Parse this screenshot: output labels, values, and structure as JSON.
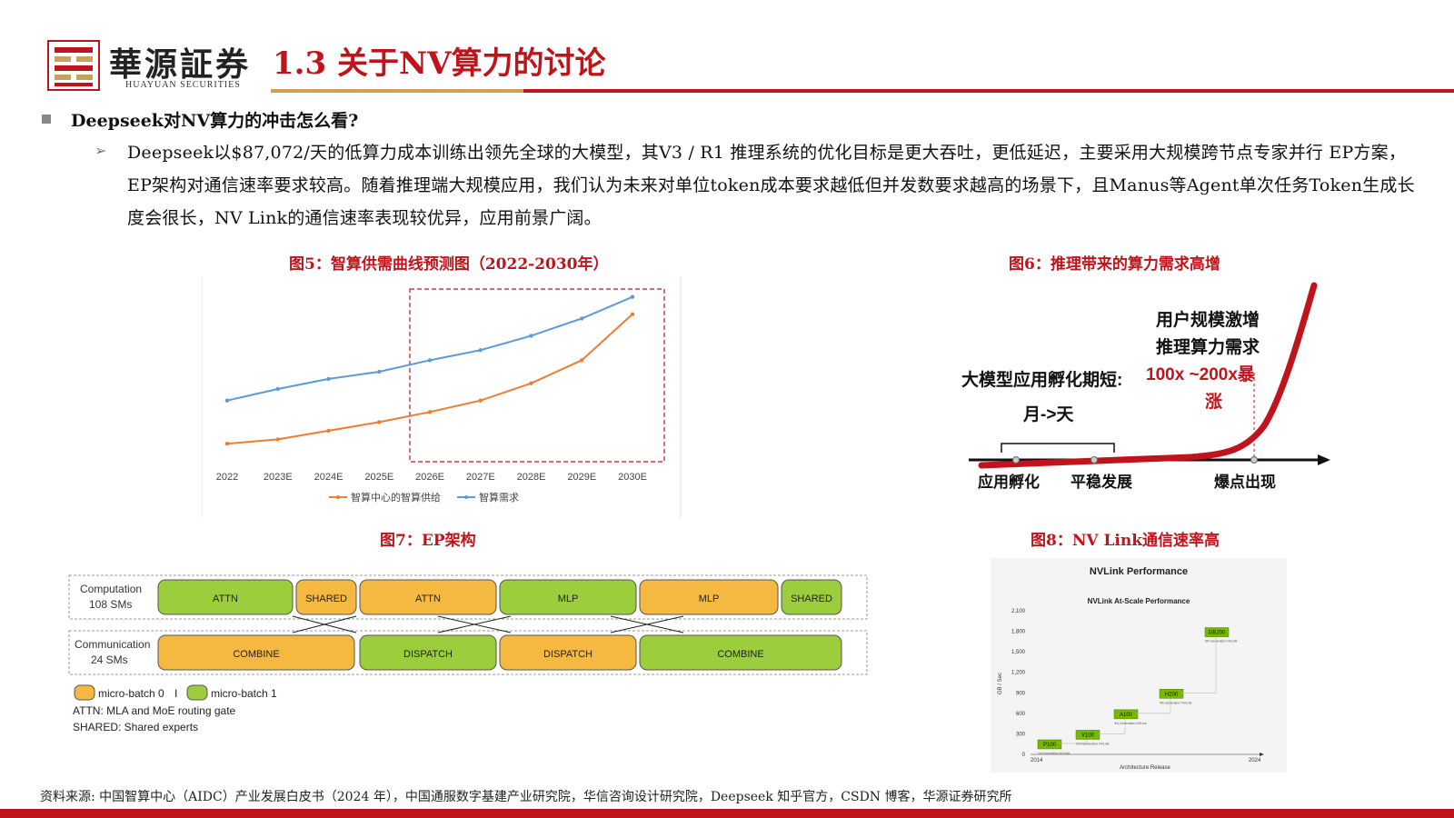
{
  "header": {
    "brand_cn": "華源証券",
    "brand_en": "HUAYUAN SECURITIES",
    "title": "1.3 关于NV算力的讨论"
  },
  "question": "Deepseek对NV算力的冲击怎么看?",
  "paragraph": "Deepseek以$87,072/天的低算力成本训练出领先全球的大模型，其V3 / R1 推理系统的优化目标是更大吞吐，更低延迟，主要采用大规模跨节点专家并行 EP方案，EP架构对通信速率要求较高。随着推理端大规模应用，我们认为未来对单位token成本要求越低但并发数要求越高的场景下，且Manus等Agent单次任务Token生成长度会很长，NV Link的通信速率表现较优异，应用前景广阔。",
  "captions": {
    "fig5": "图5：智算供需曲线预测图（2022-2030年）",
    "fig6": "图6：推理带来的算力需求高增",
    "fig7": "图7：EP架构",
    "fig8": "图8：NV Link通信速率高"
  },
  "chart_data": [
    {
      "type": "line",
      "title": "",
      "categories": [
        "2022",
        "2023E",
        "2024E",
        "2025E",
        "2026E",
        "2027E",
        "2028E",
        "2029E",
        "2030E"
      ],
      "series": [
        {
          "name": "智算中心的智算供给",
          "color": "#ed7d31",
          "values": [
            10,
            13,
            19,
            25,
            32,
            40,
            52,
            68,
            100
          ]
        },
        {
          "name": "智算需求",
          "color": "#5b9bd5",
          "values": [
            40,
            48,
            55,
            60,
            68,
            75,
            85,
            97,
            112
          ]
        }
      ],
      "ylim": [
        0,
        120
      ],
      "grid": false,
      "legend": "bottom",
      "highlight_box": "2026E-2030E"
    },
    {
      "type": "bar",
      "title": "NVLink Performance",
      "subtitle": "NVLink At-Scale Performance",
      "xlabel": "Architecture Release",
      "ylabel": "GB / Sec",
      "x_start": "2014",
      "x_end": "2024",
      "yticks": [
        "0",
        "300",
        "600",
        "900",
        "1,200",
        "1,500",
        "1,800",
        "2,100"
      ],
      "ylim": [
        0,
        2100
      ],
      "categories": [
        "P100",
        "V100",
        "A100",
        "H200",
        "GB200"
      ],
      "values": [
        160,
        300,
        600,
        900,
        1800
      ],
      "notes": [
        "1st Generation NVLink",
        "2nd Generation NVLink",
        "3rd Generation NVLink",
        "4th Generation NVLink",
        "5th Generation NVLink"
      ]
    }
  ],
  "fig6": {
    "label_top1": "用户规模激增",
    "label_top2": "推理算力需求",
    "label_mid": "大模型应用孵化期短:",
    "label_red1": "100x ~200x暴",
    "label_red2": "涨",
    "label_bracket": "月->天",
    "stage1": "应用孵化",
    "stage2": "平稳发展",
    "stage3": "爆点出现"
  },
  "fig7": {
    "row1_label1": "Computation",
    "row1_label2": "108 SMs",
    "row2_label1": "Communication",
    "row2_label2": "24 SMs",
    "row1_blocks": [
      "ATTN",
      "SHARED",
      "ATTN",
      "MLP",
      "MLP",
      "SHARED"
    ],
    "row2_blocks": [
      "COMBINE",
      "DISPATCH",
      "DISPATCH",
      "COMBINE"
    ],
    "legend_0": "micro-batch 0",
    "legend_sep": "I",
    "legend_1": "micro-batch 1",
    "note1": "ATTN: MLA and MoE routing gate",
    "note2": "SHARED: Shared experts",
    "colors": {
      "yellow": "#f5b942",
      "green": "#9ccd3c"
    }
  },
  "footer": {
    "source": "资料来源: 中国智算中心（AIDC）产业发展白皮书（2024 年），中国通服数字基建产业研究院，华信咨询设计研究院，Deepseek 知乎官方，CSDN 博客，华源证券研究所"
  },
  "colors": {
    "brand_red": "#c0141c",
    "brand_gold": "#c9a15b"
  }
}
